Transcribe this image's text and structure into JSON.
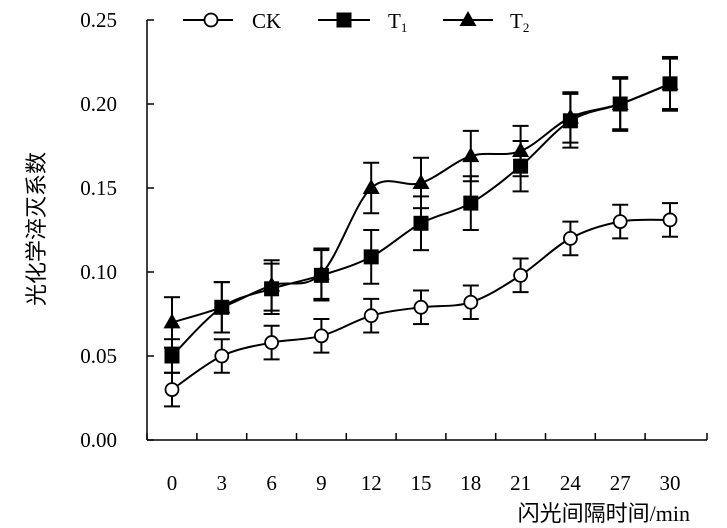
{
  "chart_data": {
    "type": "line",
    "title": "",
    "xlabel": "闪光间隔时间/min",
    "ylabel": "光化学淬灭系数",
    "x": [
      0,
      3,
      6,
      9,
      12,
      15,
      18,
      21,
      24,
      27,
      30
    ],
    "x_tick_labels": [
      "0",
      "3",
      "6",
      "9",
      "12",
      "15",
      "18",
      "21",
      "24",
      "27",
      "30"
    ],
    "y_tick_labels": [
      "0.00",
      "0.05",
      "0.10",
      "0.15",
      "0.20",
      "0.25"
    ],
    "ylim": [
      0,
      0.25
    ],
    "grid": false,
    "legend_position": "top-left",
    "series": [
      {
        "name": "CK",
        "label_main": "CK",
        "label_sub": "",
        "marker": "open-circle",
        "values": [
          0.03,
          0.05,
          0.058,
          0.062,
          0.074,
          0.079,
          0.082,
          0.098,
          0.12,
          0.13,
          0.131
        ],
        "errors": [
          0.01,
          0.01,
          0.01,
          0.01,
          0.01,
          0.01,
          0.01,
          0.01,
          0.01,
          0.01,
          0.01
        ]
      },
      {
        "name": "T1",
        "label_main": "T",
        "label_sub": "1",
        "marker": "filled-square",
        "values": [
          0.05,
          0.079,
          0.09,
          0.098,
          0.109,
          0.129,
          0.141,
          0.163,
          0.19,
          0.2,
          0.212
        ],
        "errors": [
          0.01,
          0.015,
          0.015,
          0.015,
          0.016,
          0.016,
          0.016,
          0.015,
          0.016,
          0.016,
          0.016
        ]
      },
      {
        "name": "T2",
        "label_main": "T",
        "label_sub": "2",
        "marker": "filled-triangle",
        "values": [
          0.07,
          0.079,
          0.092,
          0.099,
          0.15,
          0.153,
          0.169,
          0.172,
          0.192,
          0.2,
          0.212
        ],
        "errors": [
          0.015,
          0.015,
          0.015,
          0.015,
          0.015,
          0.015,
          0.015,
          0.015,
          0.015,
          0.015,
          0.015
        ]
      }
    ]
  }
}
